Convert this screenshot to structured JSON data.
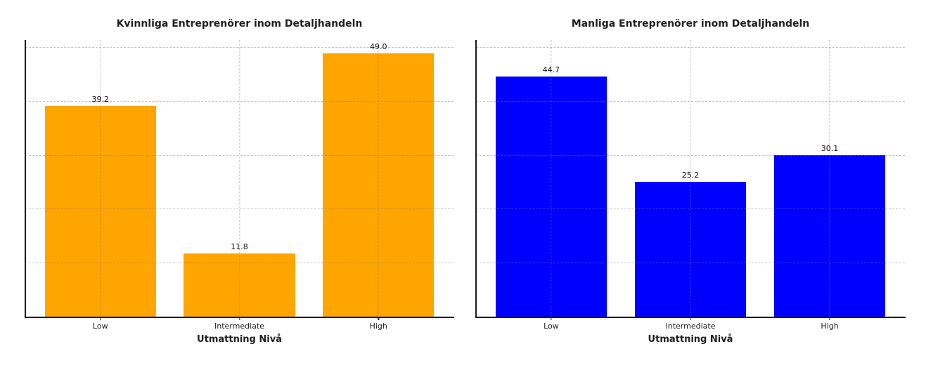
{
  "figure": {
    "background": "#ffffff"
  },
  "chart_data": [
    {
      "type": "bar",
      "title": "Kvinnliga Entreprenörer inom Detaljhandeln",
      "xlabel": "Utmattning Nivå",
      "ylabel": "",
      "categories": [
        "Low",
        "Intermediate",
        "High"
      ],
      "values": [
        39.2,
        11.8,
        49.0
      ],
      "bar_labels": [
        "39.2",
        "11.8",
        "49.0"
      ],
      "bar_color": "#FFA500",
      "ylim": [
        0,
        51.45
      ],
      "y_tick_labels_visible": false,
      "grid": {
        "visible": true,
        "linestyle": "dashed",
        "color": "#b0b0b0",
        "y_gridline_values": [
          10,
          20,
          30,
          40,
          50
        ],
        "vertical_gridlines_at_categories": true,
        "drawn_above_bars": true
      },
      "spines": [
        "left",
        "bottom"
      ],
      "legend": "none"
    },
    {
      "type": "bar",
      "title": "Manliga Entreprenörer inom Detaljhandeln",
      "xlabel": "Utmattning Nivå",
      "ylabel": "",
      "categories": [
        "Low",
        "Intermediate",
        "High"
      ],
      "values": [
        44.7,
        25.2,
        30.1
      ],
      "bar_labels": [
        "44.7",
        "25.2",
        "30.1"
      ],
      "bar_color": "#0000FF",
      "ylim": [
        0,
        51.45
      ],
      "y_tick_labels_visible": false,
      "grid": {
        "visible": true,
        "linestyle": "dashed",
        "color": "#b0b0b0",
        "y_gridline_values": [
          10,
          20,
          30,
          40,
          50
        ],
        "vertical_gridlines_at_categories": true,
        "drawn_above_bars": true
      },
      "spines": [
        "left",
        "bottom"
      ],
      "legend": "none"
    }
  ]
}
